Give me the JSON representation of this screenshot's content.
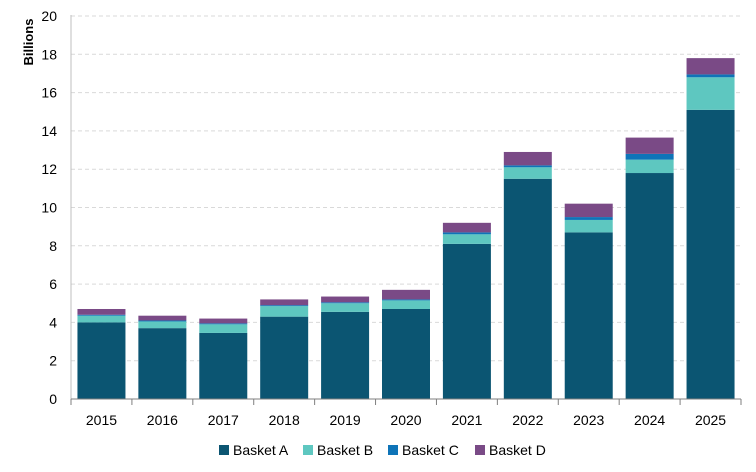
{
  "chart_data": {
    "type": "bar",
    "stacked": true,
    "title": "",
    "xlabel": "",
    "ylabel": "Billions",
    "ylim": [
      0,
      20
    ],
    "yticks": [
      0,
      2,
      4,
      6,
      8,
      10,
      12,
      14,
      16,
      18,
      20
    ],
    "grid": "horizontal dashed",
    "legend_position": "bottom",
    "categories": [
      "2015",
      "2016",
      "2017",
      "2018",
      "2019",
      "2020",
      "2021",
      "2022",
      "2023",
      "2024",
      "2025"
    ],
    "series": [
      {
        "name": "Basket A",
        "color": "#0b5572",
        "values": [
          4.0,
          3.7,
          3.45,
          4.3,
          4.55,
          4.7,
          8.1,
          11.5,
          8.7,
          11.8,
          15.1
        ]
      },
      {
        "name": "Basket B",
        "color": "#5ec7c0",
        "values": [
          0.35,
          0.35,
          0.45,
          0.55,
          0.45,
          0.45,
          0.5,
          0.6,
          0.65,
          0.7,
          1.7
        ]
      },
      {
        "name": "Basket C",
        "color": "#0e74b8",
        "values": [
          0.05,
          0.05,
          0.05,
          0.05,
          0.05,
          0.05,
          0.1,
          0.1,
          0.15,
          0.3,
          0.15
        ]
      },
      {
        "name": "Basket D",
        "color": "#7a4a86",
        "values": [
          0.3,
          0.25,
          0.25,
          0.3,
          0.3,
          0.5,
          0.5,
          0.7,
          0.7,
          0.85,
          0.85
        ]
      }
    ]
  }
}
